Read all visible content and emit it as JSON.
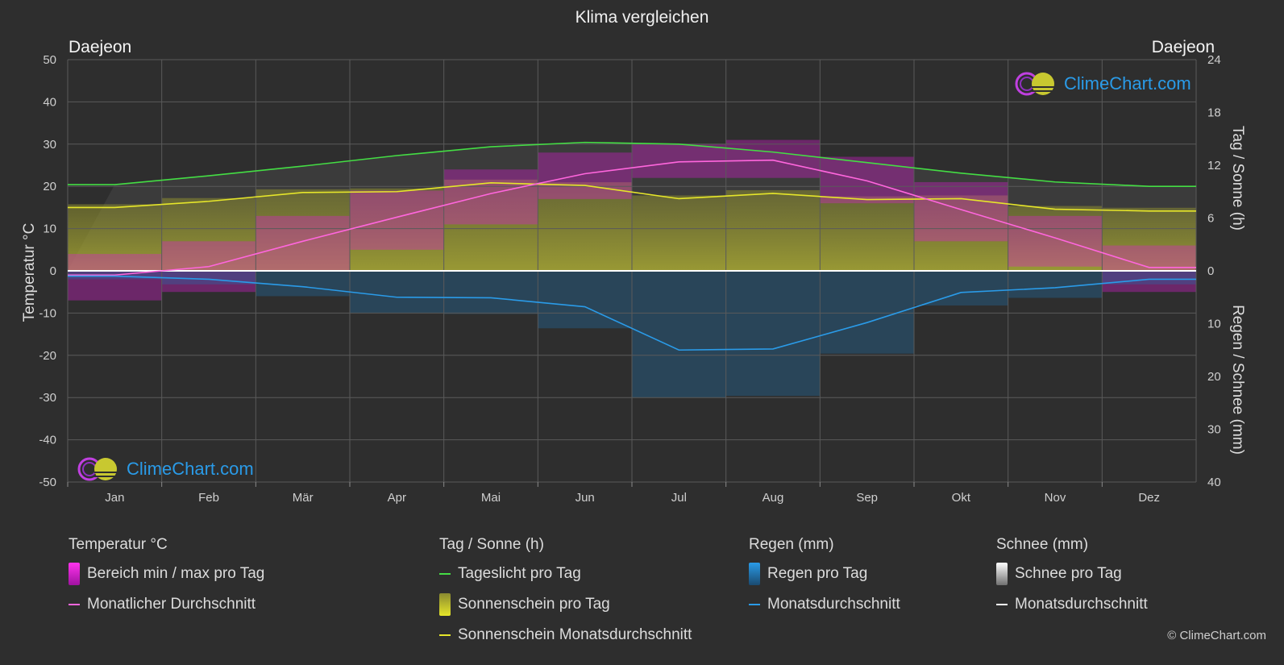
{
  "title": "Klima vergleichen",
  "location_left": "Daejeon",
  "location_right": "Daejeon",
  "logo_text": "ClimeChart.com",
  "copyright": "© ClimeChart.com",
  "colors": {
    "daylight": "#44dd44",
    "sunshine_avg": "#e6e62a",
    "temp_avg": "#ff66dd",
    "rain_avg": "#2a9be8",
    "snow_avg": "#ffffff",
    "temp_range": "#e01ad8",
    "sunshine_bar": "#b8b832",
    "rain_bar": "#1f6fa8"
  },
  "chart_data": {
    "type": "line",
    "title": "Klima vergleichen",
    "x_categories": [
      "Jan",
      "Feb",
      "Mär",
      "Apr",
      "Mai",
      "Jun",
      "Jul",
      "Aug",
      "Sep",
      "Okt",
      "Nov",
      "Dez"
    ],
    "left_axis": {
      "label": "Temperatur °C",
      "range": [
        -50,
        50
      ],
      "ticks": [
        50,
        40,
        30,
        20,
        10,
        0,
        -10,
        -20,
        -30,
        -40,
        -50
      ]
    },
    "right_axis_top": {
      "label": "Tag / Sonne (h)",
      "range": [
        0,
        24
      ],
      "ticks": [
        24,
        18,
        12,
        6,
        0
      ]
    },
    "right_axis_bottom": {
      "label": "Regen / Schnee (mm)",
      "range": [
        0,
        40
      ],
      "ticks": [
        0,
        10,
        20,
        30,
        40
      ]
    },
    "grid": true,
    "series": [
      {
        "name": "Tageslicht pro Tag",
        "unit": "h",
        "values": [
          9.8,
          10.8,
          11.9,
          13.1,
          14.1,
          14.6,
          14.4,
          13.5,
          12.3,
          11.1,
          10.1,
          9.6
        ]
      },
      {
        "name": "Sonnenschein Monatsdurchschnitt",
        "unit": "h",
        "values": [
          7.2,
          7.9,
          8.9,
          9.0,
          10.0,
          9.7,
          8.2,
          8.8,
          8.1,
          8.2,
          7.0,
          6.8
        ]
      },
      {
        "name": "Monatlicher Durchschnitt",
        "unit": "°C",
        "values": [
          -1.0,
          1.0,
          7.0,
          12.7,
          18.3,
          23.0,
          25.8,
          26.2,
          21.3,
          14.5,
          7.8,
          0.8
        ]
      },
      {
        "name": "Monatsdurchschnitt",
        "unit": "mm",
        "values": [
          1.0,
          1.6,
          3.0,
          5.0,
          5.1,
          6.8,
          15.0,
          14.8,
          9.8,
          4.1,
          3.2,
          1.6
        ]
      },
      {
        "name": "Bereich min / max pro Tag",
        "unit": "°C",
        "min": [
          -7,
          -5,
          0,
          5,
          11,
          17,
          22,
          22,
          16,
          7,
          1,
          -5
        ],
        "max": [
          4,
          7,
          13,
          19,
          24,
          28,
          30,
          31,
          27,
          21,
          13,
          6
        ]
      }
    ]
  },
  "legend": {
    "groups": [
      {
        "heading": "Temperatur °C",
        "items": [
          {
            "label": "Bereich min / max pro Tag",
            "kind": "box",
            "color_key": "temp_range"
          },
          {
            "label": "Monatlicher Durchschnitt",
            "kind": "line",
            "color_key": "temp_avg"
          }
        ]
      },
      {
        "heading": "Tag / Sonne (h)",
        "items": [
          {
            "label": "Tageslicht pro Tag",
            "kind": "line",
            "color_key": "daylight"
          },
          {
            "label": "Sonnenschein pro Tag",
            "kind": "box",
            "color_key": "sunshine_bar"
          },
          {
            "label": "Sonnenschein Monatsdurchschnitt",
            "kind": "line",
            "color_key": "sunshine_avg"
          }
        ]
      },
      {
        "heading": "Regen (mm)",
        "items": [
          {
            "label": "Regen pro Tag",
            "kind": "box",
            "color_key": "rain_bar"
          },
          {
            "label": "Monatsdurchschnitt",
            "kind": "line",
            "color_key": "rain_avg"
          }
        ]
      },
      {
        "heading": "Schnee (mm)",
        "items": [
          {
            "label": "Schnee pro Tag",
            "kind": "box",
            "color_key": "snow_avg"
          },
          {
            "label": "Monatsdurchschnitt",
            "kind": "line",
            "color_key": "snow_avg"
          }
        ]
      }
    ]
  }
}
